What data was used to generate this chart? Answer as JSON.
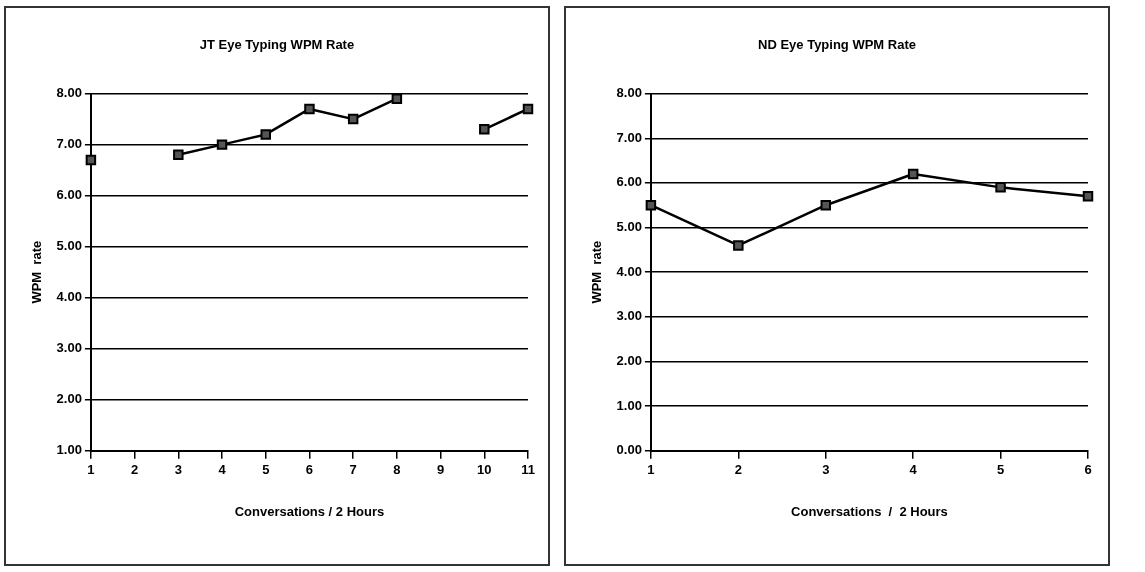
{
  "chart_data": [
    {
      "type": "line",
      "title": "JT Eye Typing WPM Rate",
      "xlabel": "Conversations / 2 Hours",
      "ylabel": "WPM  rate",
      "categories": [
        "1",
        "2",
        "3",
        "4",
        "5",
        "6",
        "7",
        "8",
        "9",
        "10",
        "11"
      ],
      "series": [
        {
          "color": "#000000",
          "values": [
            6.7,
            null,
            6.8,
            7.0,
            7.2,
            7.7,
            7.5,
            7.9,
            null,
            7.3,
            7.7
          ]
        }
      ],
      "ylim": [
        1,
        8
      ],
      "yticks": [
        {
          "value": 1,
          "label": "1.00"
        },
        {
          "value": 2,
          "label": "2.00"
        },
        {
          "value": 3,
          "label": "3.00"
        },
        {
          "value": 4,
          "label": "4.00"
        },
        {
          "value": 5,
          "label": "5.00"
        },
        {
          "value": 6,
          "label": "6.00"
        },
        {
          "value": 7,
          "label": "7.00"
        },
        {
          "value": 8,
          "label": "8.00"
        }
      ],
      "grid": "y",
      "legend": false,
      "marker": "square",
      "line_style": "solid"
    },
    {
      "type": "line",
      "title": "ND Eye Typing WPM Rate",
      "xlabel": "Conversations  /  2 Hours",
      "ylabel": "WPM  rate",
      "categories": [
        "1",
        "2",
        "3",
        "4",
        "5",
        "6"
      ],
      "series": [
        {
          "color": "#000000",
          "values": [
            5.5,
            4.6,
            5.5,
            6.2,
            5.9,
            5.7
          ]
        }
      ],
      "ylim": [
        0,
        8
      ],
      "yticks": [
        {
          "value": 0,
          "label": "0.00"
        },
        {
          "value": 1,
          "label": "1.00"
        },
        {
          "value": 2,
          "label": "2.00"
        },
        {
          "value": 3,
          "label": "3.00"
        },
        {
          "value": 4,
          "label": "4.00"
        },
        {
          "value": 5,
          "label": "5.00"
        },
        {
          "value": 6,
          "label": "6.00"
        },
        {
          "value": 7,
          "label": "7.00"
        },
        {
          "value": 8,
          "label": "8.00"
        }
      ],
      "grid": "y",
      "legend": false,
      "marker": "square",
      "line_style": "solid"
    }
  ]
}
